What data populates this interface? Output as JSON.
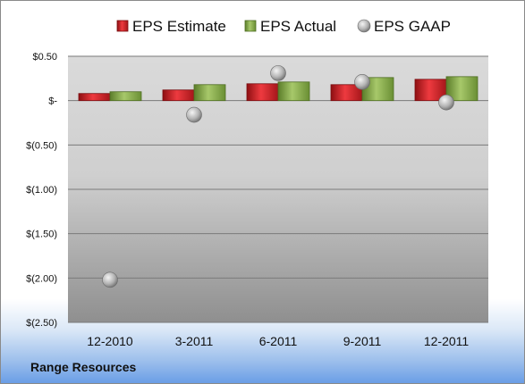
{
  "chart_data": {
    "type": "bar",
    "categories": [
      "12-2010",
      "3-2011",
      "6-2011",
      "9-2011",
      "12-2011"
    ],
    "series": [
      {
        "name": "EPS Estimate",
        "kind": "bar",
        "color": "#d91f26",
        "values": [
          0.08,
          0.12,
          0.19,
          0.18,
          0.24
        ]
      },
      {
        "name": "EPS Actual",
        "kind": "bar",
        "color": "#8db24e",
        "values": [
          0.1,
          0.18,
          0.21,
          0.26,
          0.27
        ]
      },
      {
        "name": "EPS GAAP",
        "kind": "scatter",
        "color": "#b9b9b9",
        "values": [
          -2.02,
          -0.16,
          0.31,
          0.21,
          -0.02
        ]
      }
    ],
    "ylim": [
      -2.5,
      0.5
    ],
    "yticks": [
      0.5,
      0,
      -0.5,
      -1.0,
      -1.5,
      -2.0,
      -2.5
    ],
    "ytick_labels": [
      "$0.50",
      "$-",
      "$(0.50)",
      "$(1.00)",
      "$(1.50)",
      "$(2.00)",
      "$(2.50)"
    ],
    "grid": true,
    "legend_position": "top"
  },
  "company": "Range Resources"
}
